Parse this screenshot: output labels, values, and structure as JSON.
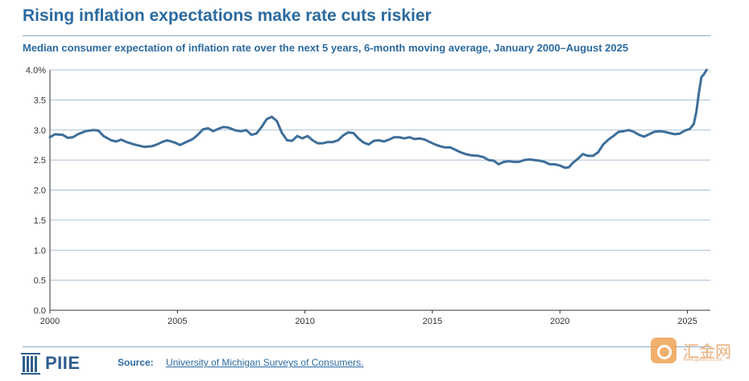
{
  "header": {
    "title": "Rising inflation expectations make rate cuts riskier",
    "subtitle": "Median consumer expectation of inflation rate over the next 5 years, 6-month moving average, January 2000–August 2025"
  },
  "footer": {
    "logo_text": "PIIE",
    "source_label": "Source:",
    "source_text": "University of Michigan Surveys of Consumers."
  },
  "watermark": {
    "text": "汇金网",
    "subtext": "www.gold678.com",
    "icon": "gold678-logo-icon"
  },
  "colors": {
    "accent": "#2b6aa0",
    "line": "#3d6e99",
    "grid": "#a9bfd3",
    "axis": "#333333",
    "watermark": "#f0a85e"
  },
  "chart_data": {
    "type": "line",
    "title": "Rising inflation expectations make rate cuts riskier",
    "subtitle": "Median consumer expectation of inflation rate over the next 5 years, 6-month moving average, January 2000–August 2025",
    "xlabel": "",
    "ylabel": "",
    "xlim": [
      2000,
      2025.9
    ],
    "ylim": [
      0,
      4
    ],
    "x_ticks": [
      "2000",
      "2005",
      "2010",
      "2015",
      "2020",
      "2025"
    ],
    "y_ticks": [
      "0.0",
      "0.5",
      "1.0",
      "1.5",
      "2.0",
      "2.5",
      "3.0",
      "3.5",
      "4.0%"
    ],
    "grid": "horizontal",
    "legend": "none",
    "series": [
      {
        "points": [
          [
            2000.0,
            2.88
          ],
          [
            2000.2,
            2.93
          ],
          [
            2000.5,
            2.92
          ],
          [
            2000.7,
            2.87
          ],
          [
            2000.9,
            2.88
          ],
          [
            2001.1,
            2.93
          ],
          [
            2001.4,
            2.98
          ],
          [
            2001.7,
            3.0
          ],
          [
            2001.9,
            2.99
          ],
          [
            2002.1,
            2.9
          ],
          [
            2002.4,
            2.83
          ],
          [
            2002.6,
            2.81
          ],
          [
            2002.8,
            2.84
          ],
          [
            2003.0,
            2.8
          ],
          [
            2003.3,
            2.76
          ],
          [
            2003.5,
            2.74
          ],
          [
            2003.7,
            2.72
          ],
          [
            2004.0,
            2.73
          ],
          [
            2004.2,
            2.76
          ],
          [
            2004.4,
            2.8
          ],
          [
            2004.6,
            2.83
          ],
          [
            2004.9,
            2.79
          ],
          [
            2005.1,
            2.75
          ],
          [
            2005.3,
            2.79
          ],
          [
            2005.6,
            2.85
          ],
          [
            2005.8,
            2.92
          ],
          [
            2006.0,
            3.01
          ],
          [
            2006.2,
            3.03
          ],
          [
            2006.4,
            2.98
          ],
          [
            2006.6,
            3.02
          ],
          [
            2006.8,
            3.05
          ],
          [
            2007.0,
            3.04
          ],
          [
            2007.3,
            2.99
          ],
          [
            2007.5,
            2.98
          ],
          [
            2007.7,
            3.0
          ],
          [
            2007.9,
            2.92
          ],
          [
            2008.1,
            2.94
          ],
          [
            2008.3,
            3.05
          ],
          [
            2008.5,
            3.18
          ],
          [
            2008.7,
            3.22
          ],
          [
            2008.9,
            3.15
          ],
          [
            2009.1,
            2.95
          ],
          [
            2009.3,
            2.83
          ],
          [
            2009.5,
            2.82
          ],
          [
            2009.7,
            2.9
          ],
          [
            2009.9,
            2.86
          ],
          [
            2010.1,
            2.9
          ],
          [
            2010.3,
            2.83
          ],
          [
            2010.5,
            2.78
          ],
          [
            2010.7,
            2.78
          ],
          [
            2010.9,
            2.8
          ],
          [
            2011.1,
            2.8
          ],
          [
            2011.3,
            2.83
          ],
          [
            2011.5,
            2.91
          ],
          [
            2011.7,
            2.96
          ],
          [
            2011.9,
            2.95
          ],
          [
            2012.1,
            2.86
          ],
          [
            2012.3,
            2.79
          ],
          [
            2012.5,
            2.76
          ],
          [
            2012.7,
            2.82
          ],
          [
            2012.9,
            2.83
          ],
          [
            2013.1,
            2.81
          ],
          [
            2013.3,
            2.84
          ],
          [
            2013.5,
            2.88
          ],
          [
            2013.7,
            2.88
          ],
          [
            2013.9,
            2.86
          ],
          [
            2014.1,
            2.88
          ],
          [
            2014.3,
            2.85
          ],
          [
            2014.5,
            2.86
          ],
          [
            2014.7,
            2.84
          ],
          [
            2014.9,
            2.8
          ],
          [
            2015.1,
            2.76
          ],
          [
            2015.3,
            2.73
          ],
          [
            2015.5,
            2.71
          ],
          [
            2015.7,
            2.71
          ],
          [
            2015.9,
            2.67
          ],
          [
            2016.1,
            2.63
          ],
          [
            2016.3,
            2.6
          ],
          [
            2016.5,
            2.58
          ],
          [
            2016.8,
            2.57
          ],
          [
            2017.0,
            2.55
          ],
          [
            2017.2,
            2.5
          ],
          [
            2017.4,
            2.49
          ],
          [
            2017.6,
            2.43
          ],
          [
            2017.8,
            2.47
          ],
          [
            2018.0,
            2.48
          ],
          [
            2018.2,
            2.47
          ],
          [
            2018.4,
            2.47
          ],
          [
            2018.6,
            2.5
          ],
          [
            2018.8,
            2.51
          ],
          [
            2019.0,
            2.5
          ],
          [
            2019.2,
            2.49
          ],
          [
            2019.4,
            2.47
          ],
          [
            2019.6,
            2.43
          ],
          [
            2019.8,
            2.43
          ],
          [
            2020.0,
            2.41
          ],
          [
            2020.2,
            2.37
          ],
          [
            2020.35,
            2.38
          ],
          [
            2020.5,
            2.45
          ],
          [
            2020.7,
            2.52
          ],
          [
            2020.9,
            2.6
          ],
          [
            2021.1,
            2.57
          ],
          [
            2021.3,
            2.57
          ],
          [
            2021.5,
            2.63
          ],
          [
            2021.7,
            2.76
          ],
          [
            2021.9,
            2.84
          ],
          [
            2022.1,
            2.9
          ],
          [
            2022.3,
            2.97
          ],
          [
            2022.5,
            2.98
          ],
          [
            2022.7,
            3.0
          ],
          [
            2022.9,
            2.97
          ],
          [
            2023.1,
            2.92
          ],
          [
            2023.3,
            2.89
          ],
          [
            2023.5,
            2.93
          ],
          [
            2023.7,
            2.97
          ],
          [
            2023.9,
            2.98
          ],
          [
            2024.1,
            2.97
          ],
          [
            2024.3,
            2.95
          ],
          [
            2024.5,
            2.93
          ],
          [
            2024.7,
            2.94
          ],
          [
            2024.9,
            2.99
          ],
          [
            2025.1,
            3.02
          ],
          [
            2025.25,
            3.1
          ],
          [
            2025.35,
            3.3
          ],
          [
            2025.45,
            3.62
          ],
          [
            2025.55,
            3.88
          ],
          [
            2025.65,
            3.93
          ],
          [
            2025.75,
            4.0
          ]
        ]
      }
    ]
  }
}
